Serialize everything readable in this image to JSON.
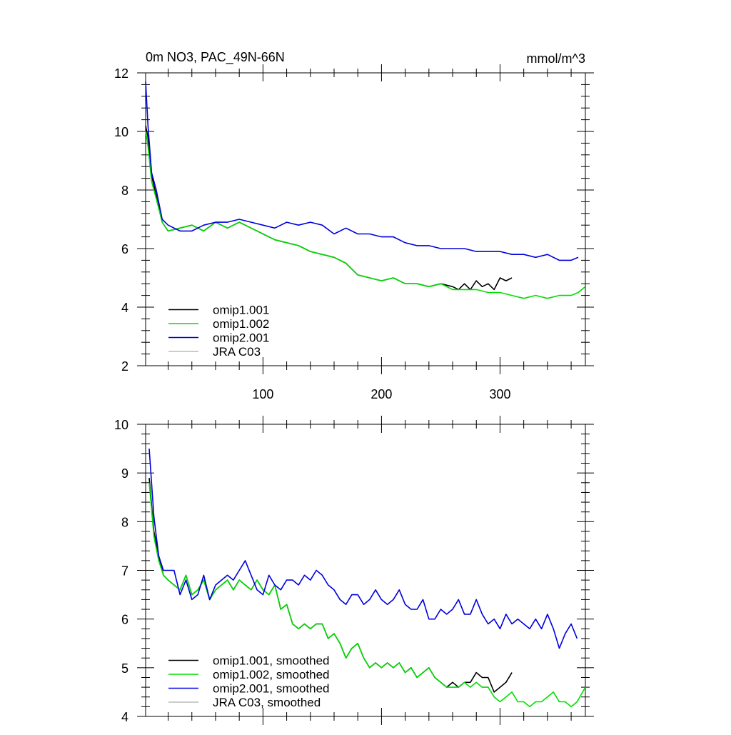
{
  "figure": {
    "title_left": "0m NO3, PAC_49N-66N",
    "title_right": "mmol/m^3"
  },
  "chart_data": [
    {
      "type": "line",
      "title": "0m NO3, PAC_49N-66N",
      "units": "mmol/m^3",
      "xlim": [
        1,
        372
      ],
      "ylim": [
        2,
        12
      ],
      "x_ticks": [
        100,
        200,
        300
      ],
      "y_ticks": [
        2,
        4,
        6,
        8,
        10,
        12
      ],
      "legend_placement": "bottom-left",
      "grid": false,
      "series": [
        {
          "name": "omip1.001",
          "color": "#000000",
          "x": [
            1,
            3,
            6,
            10,
            15,
            20,
            30,
            40,
            50,
            60,
            70,
            80,
            90,
            100,
            110,
            120,
            130,
            140,
            150,
            160,
            170,
            180,
            190,
            200,
            210,
            220,
            230,
            240,
            250,
            260,
            265,
            270,
            275,
            280,
            285,
            290,
            295,
            300,
            305,
            310
          ],
          "y": [
            10.2,
            9.8,
            8.5,
            7.8,
            6.9,
            6.6,
            6.7,
            6.8,
            6.6,
            6.9,
            6.7,
            6.9,
            6.7,
            6.5,
            6.3,
            6.2,
            6.1,
            5.9,
            5.8,
            5.7,
            5.5,
            5.1,
            5.0,
            4.9,
            5.0,
            4.8,
            4.8,
            4.7,
            4.8,
            4.7,
            4.6,
            4.8,
            4.6,
            4.9,
            4.7,
            4.8,
            4.6,
            5.0,
            4.9,
            5.0
          ]
        },
        {
          "name": "omip1.002",
          "color": "#00dd00",
          "x": [
            1,
            3,
            6,
            10,
            15,
            20,
            30,
            40,
            50,
            60,
            70,
            80,
            90,
            100,
            110,
            120,
            130,
            140,
            150,
            160,
            170,
            180,
            190,
            200,
            210,
            220,
            230,
            240,
            250,
            260,
            270,
            280,
            290,
            300,
            310,
            320,
            330,
            340,
            350,
            360,
            366,
            372
          ],
          "y": [
            10.0,
            9.5,
            8.3,
            7.7,
            6.9,
            6.6,
            6.7,
            6.8,
            6.6,
            6.9,
            6.7,
            6.9,
            6.7,
            6.5,
            6.3,
            6.2,
            6.1,
            5.9,
            5.8,
            5.7,
            5.5,
            5.1,
            5.0,
            4.9,
            5.0,
            4.8,
            4.8,
            4.7,
            4.8,
            4.6,
            4.6,
            4.6,
            4.5,
            4.5,
            4.4,
            4.3,
            4.4,
            4.3,
            4.4,
            4.4,
            4.5,
            4.7
          ]
        },
        {
          "name": "omip2.001",
          "color": "#0000dd",
          "x": [
            1,
            3,
            6,
            10,
            15,
            20,
            30,
            40,
            50,
            60,
            70,
            80,
            90,
            100,
            110,
            120,
            130,
            140,
            150,
            160,
            170,
            180,
            190,
            200,
            210,
            220,
            230,
            240,
            250,
            260,
            270,
            280,
            290,
            300,
            310,
            320,
            330,
            340,
            350,
            360,
            366
          ],
          "y": [
            11.7,
            10.2,
            8.6,
            8.0,
            7.0,
            6.8,
            6.6,
            6.6,
            6.8,
            6.9,
            6.9,
            7.0,
            6.9,
            6.8,
            6.7,
            6.9,
            6.8,
            6.9,
            6.8,
            6.5,
            6.7,
            6.5,
            6.5,
            6.4,
            6.4,
            6.2,
            6.1,
            6.1,
            6.0,
            6.0,
            6.0,
            5.9,
            5.9,
            5.9,
            5.8,
            5.8,
            5.7,
            5.8,
            5.6,
            5.6,
            5.7
          ]
        },
        {
          "name": "JRA C03",
          "color": "#bbbbbb",
          "x": [],
          "y": []
        }
      ]
    },
    {
      "type": "line",
      "xlim": [
        1,
        372
      ],
      "ylim": [
        4,
        10
      ],
      "x_ticks": [
        100,
        200,
        300
      ],
      "y_ticks": [
        4,
        5,
        6,
        7,
        8,
        9,
        10
      ],
      "legend_placement": "bottom-left",
      "grid": false,
      "series": [
        {
          "name": "omip1.001, smoothed",
          "color": "#000000",
          "x": [
            4,
            8,
            12,
            16,
            20,
            25,
            30,
            35,
            40,
            45,
            50,
            55,
            60,
            65,
            70,
            75,
            80,
            85,
            90,
            95,
            100,
            105,
            110,
            115,
            120,
            125,
            130,
            135,
            140,
            145,
            150,
            155,
            160,
            165,
            170,
            175,
            180,
            185,
            190,
            195,
            200,
            205,
            210,
            215,
            220,
            225,
            230,
            235,
            240,
            245,
            250,
            255,
            260,
            265,
            270,
            275,
            280,
            285,
            290,
            295,
            300,
            305,
            310
          ],
          "y": [
            8.9,
            7.8,
            7.3,
            6.9,
            6.8,
            6.7,
            6.6,
            6.9,
            6.5,
            6.6,
            6.8,
            6.4,
            6.6,
            6.7,
            6.8,
            6.6,
            6.8,
            6.7,
            6.6,
            6.8,
            6.6,
            6.5,
            6.7,
            6.2,
            6.3,
            5.9,
            5.8,
            5.9,
            5.8,
            5.9,
            5.9,
            5.6,
            5.7,
            5.5,
            5.2,
            5.4,
            5.5,
            5.2,
            5.0,
            5.1,
            5.0,
            5.1,
            5.0,
            5.1,
            4.9,
            5.0,
            4.8,
            4.9,
            5.0,
            4.8,
            4.7,
            4.6,
            4.7,
            4.6,
            4.7,
            4.7,
            4.9,
            4.8,
            4.8,
            4.5,
            4.6,
            4.7,
            4.9
          ]
        },
        {
          "name": "omip1.002, smoothed",
          "color": "#00dd00",
          "x": [
            4,
            8,
            12,
            16,
            20,
            25,
            30,
            35,
            40,
            45,
            50,
            55,
            60,
            65,
            70,
            75,
            80,
            85,
            90,
            95,
            100,
            105,
            110,
            115,
            120,
            125,
            130,
            135,
            140,
            145,
            150,
            155,
            160,
            165,
            170,
            175,
            180,
            185,
            190,
            195,
            200,
            205,
            210,
            215,
            220,
            225,
            230,
            235,
            240,
            245,
            250,
            255,
            260,
            265,
            270,
            275,
            280,
            285,
            290,
            295,
            300,
            305,
            310,
            315,
            320,
            325,
            330,
            335,
            340,
            345,
            350,
            355,
            360,
            365,
            372
          ],
          "y": [
            8.8,
            7.7,
            7.2,
            6.9,
            6.8,
            6.7,
            6.6,
            6.9,
            6.5,
            6.6,
            6.8,
            6.4,
            6.6,
            6.7,
            6.8,
            6.6,
            6.8,
            6.7,
            6.6,
            6.8,
            6.6,
            6.5,
            6.7,
            6.2,
            6.3,
            5.9,
            5.8,
            5.9,
            5.8,
            5.9,
            5.9,
            5.6,
            5.7,
            5.5,
            5.2,
            5.4,
            5.5,
            5.2,
            5.0,
            5.1,
            5.0,
            5.1,
            5.0,
            5.1,
            4.9,
            5.0,
            4.8,
            4.9,
            5.0,
            4.8,
            4.7,
            4.6,
            4.6,
            4.6,
            4.7,
            4.6,
            4.7,
            4.6,
            4.6,
            4.4,
            4.3,
            4.4,
            4.5,
            4.3,
            4.3,
            4.2,
            4.3,
            4.3,
            4.4,
            4.5,
            4.3,
            4.3,
            4.2,
            4.3,
            4.6
          ]
        },
        {
          "name": "omip2.001, smoothed",
          "color": "#0000dd",
          "x": [
            4,
            8,
            12,
            16,
            20,
            25,
            30,
            35,
            40,
            45,
            50,
            55,
            60,
            65,
            70,
            75,
            80,
            85,
            90,
            95,
            100,
            105,
            110,
            115,
            120,
            125,
            130,
            135,
            140,
            145,
            150,
            155,
            160,
            165,
            170,
            175,
            180,
            185,
            190,
            195,
            200,
            205,
            210,
            215,
            220,
            225,
            230,
            235,
            240,
            245,
            250,
            255,
            260,
            265,
            270,
            275,
            280,
            285,
            290,
            295,
            300,
            305,
            310,
            315,
            320,
            325,
            330,
            335,
            340,
            345,
            350,
            355,
            360,
            365
          ],
          "y": [
            9.5,
            8.1,
            7.3,
            7.0,
            7.0,
            7.0,
            6.5,
            6.8,
            6.4,
            6.5,
            6.9,
            6.4,
            6.7,
            6.8,
            6.9,
            6.8,
            7.0,
            7.2,
            6.9,
            6.6,
            6.5,
            6.9,
            6.7,
            6.6,
            6.8,
            6.8,
            6.7,
            6.9,
            6.8,
            7.0,
            6.9,
            6.7,
            6.6,
            6.4,
            6.3,
            6.5,
            6.5,
            6.3,
            6.4,
            6.6,
            6.4,
            6.3,
            6.4,
            6.6,
            6.3,
            6.2,
            6.2,
            6.4,
            6.0,
            6.0,
            6.2,
            6.1,
            6.2,
            6.4,
            6.1,
            6.1,
            6.4,
            6.1,
            5.9,
            6.0,
            5.8,
            6.1,
            5.9,
            6.0,
            5.9,
            5.8,
            6.0,
            5.8,
            6.1,
            5.8,
            5.4,
            5.7,
            5.9,
            5.6
          ]
        },
        {
          "name": "JRA C03, smoothed",
          "color": "#bbbbbb",
          "x": [],
          "y": []
        }
      ]
    }
  ]
}
